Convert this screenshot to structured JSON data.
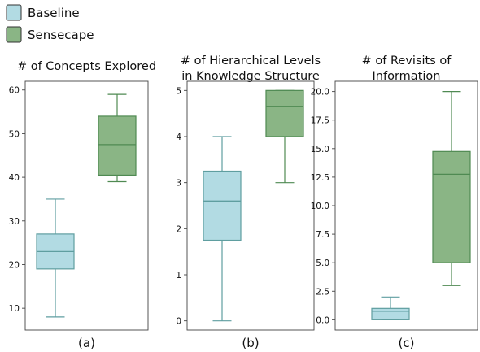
{
  "legend": {
    "position": "top-left",
    "items": [
      {
        "label": "Baseline",
        "fill": "#b2dbe3",
        "stroke": "#5f9ea0"
      },
      {
        "label": "Sensecape",
        "fill": "#8ab585",
        "stroke": "#4f8a52"
      }
    ]
  },
  "chart_data": [
    {
      "type": "box",
      "panel_label": "(a)",
      "title": [
        "# of Concepts Explored"
      ],
      "ylim": [
        5,
        62
      ],
      "yticks": [
        10,
        20,
        30,
        40,
        50,
        60
      ],
      "ytick_labels": [
        "10",
        "20",
        "30",
        "40",
        "50",
        "60"
      ],
      "grid": false,
      "series": [
        {
          "name": "Baseline",
          "whisker_low": 8,
          "q1": 19,
          "median": 23,
          "q3": 27,
          "whisker_high": 35
        },
        {
          "name": "Sensecape",
          "whisker_low": 39,
          "q1": 40.5,
          "median": 47.5,
          "q3": 54,
          "whisker_high": 59
        }
      ]
    },
    {
      "type": "box",
      "panel_label": "(b)",
      "title": [
        "# of Hierarchical Levels",
        "in Knowledge Structure"
      ],
      "ylim": [
        -0.2,
        5.2
      ],
      "yticks": [
        0,
        1,
        2,
        3,
        4,
        5
      ],
      "ytick_labels": [
        "0",
        "1",
        "2",
        "3",
        "4",
        "5"
      ],
      "grid": false,
      "series": [
        {
          "name": "Baseline",
          "whisker_low": 0,
          "q1": 1.75,
          "median": 2.6,
          "q3": 3.25,
          "whisker_high": 4
        },
        {
          "name": "Sensecape",
          "whisker_low": 3,
          "q1": 4,
          "median": 4.65,
          "q3": 5,
          "whisker_high": 5
        }
      ]
    },
    {
      "type": "box",
      "panel_label": "(c)",
      "title": [
        "# of Revisits of",
        "Information"
      ],
      "ylim": [
        -0.9,
        20.9
      ],
      "yticks": [
        0,
        2.5,
        5,
        7.5,
        10,
        12.5,
        15,
        17.5,
        20
      ],
      "ytick_labels": [
        "0.0",
        "2.5",
        "5.0",
        "7.5",
        "10.0",
        "12.5",
        "15.0",
        "17.5",
        "20.0"
      ],
      "grid": false,
      "series": [
        {
          "name": "Baseline",
          "whisker_low": 0,
          "q1": 0,
          "median": 0.75,
          "q3": 1,
          "whisker_high": 2
        },
        {
          "name": "Sensecape",
          "whisker_low": 3,
          "q1": 5,
          "median": 12.75,
          "q3": 14.75,
          "whisker_high": 20
        }
      ]
    }
  ]
}
